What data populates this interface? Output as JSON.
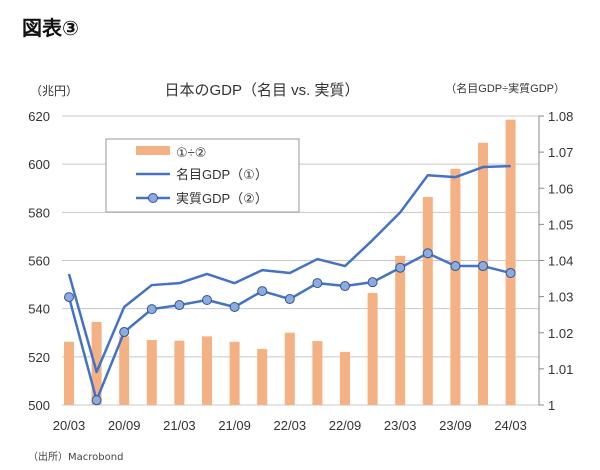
{
  "figure_label": "図表③",
  "source": "（出所）Macrobond",
  "chart_data": {
    "type": "bar+line",
    "title": "日本のGDP（名目 vs. 実質）",
    "ylabel": "（兆円）",
    "y2label": "（名目GDP÷実質GDP）",
    "ylim": [
      500,
      620
    ],
    "yticks": [
      "500",
      "520",
      "540",
      "560",
      "580",
      "600",
      "620"
    ],
    "y2lim": [
      1.0,
      1.08
    ],
    "y2ticks": [
      "1",
      "1.01",
      "1.02",
      "1.03",
      "1.04",
      "1.05",
      "1.06",
      "1.07",
      "1.08"
    ],
    "x": [
      "20/03",
      "20/06",
      "20/09",
      "20/12",
      "21/03",
      "21/06",
      "21/09",
      "21/12",
      "22/03",
      "22/06",
      "22/09",
      "22/12",
      "23/03",
      "23/06",
      "23/09",
      "23/12",
      "24/03"
    ],
    "xtick_labels": [
      "20/03",
      "20/09",
      "21/03",
      "21/09",
      "22/03",
      "22/09",
      "23/03",
      "23/09",
      "24/03"
    ],
    "grid": true,
    "legend_placement": "top-left",
    "series": [
      {
        "name": "①÷②",
        "type": "bar",
        "axis": "right",
        "color": "#F4B183",
        "values": [
          1.0175,
          1.023,
          1.019,
          1.018,
          1.0178,
          1.019,
          1.0175,
          1.0155,
          1.02,
          1.0177,
          1.0147,
          1.031,
          1.0413,
          1.0576,
          1.0654,
          1.0726,
          1.079
        ]
      },
      {
        "name": "名目GDP（①）",
        "type": "line",
        "axis": "left",
        "color": "#4472C4",
        "values": [
          554.4,
          513.7,
          540.7,
          549.8,
          550.6,
          554.4,
          550.6,
          556.0,
          554.8,
          560.6,
          557.7,
          568.5,
          580.0,
          595.4,
          594.6,
          598.8,
          599.2
        ]
      },
      {
        "name": "実質GDP（②）",
        "type": "line-marker",
        "axis": "left",
        "color": "#4472C4",
        "marker_color": "#8FAADC",
        "values": [
          544.8,
          502.0,
          530.3,
          539.8,
          541.5,
          543.6,
          540.7,
          547.3,
          544.0,
          550.6,
          549.4,
          551.0,
          557.0,
          563.0,
          557.7,
          557.7,
          554.8
        ]
      }
    ]
  }
}
